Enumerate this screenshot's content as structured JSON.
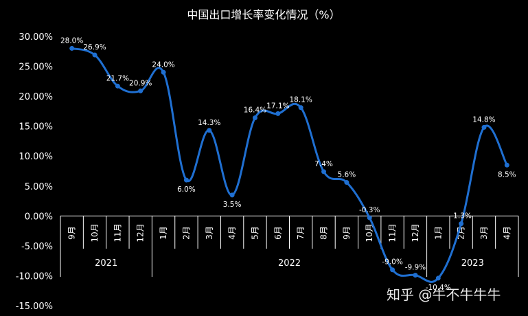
{
  "chart_data": {
    "type": "line",
    "title": "中国出口增长率变化情况（%）",
    "categories": [
      "9月",
      "10月",
      "11月",
      "12月",
      "1月",
      "2月",
      "3月",
      "4月",
      "5月",
      "6月",
      "7月",
      "8月",
      "9月",
      "10月",
      "11月",
      "12月",
      "1月",
      "2月",
      "3月",
      "4月"
    ],
    "category_groups": [
      {
        "label": "2021",
        "count": 4
      },
      {
        "label": "2022",
        "count": 12
      },
      {
        "label": "2023",
        "count": 4
      }
    ],
    "values": [
      28.0,
      26.9,
      21.7,
      20.9,
      24.0,
      6.0,
      14.3,
      3.5,
      16.4,
      17.1,
      18.1,
      7.4,
      5.6,
      -0.3,
      -9.0,
      -9.9,
      -10.4,
      -1.3,
      14.8,
      8.5
    ],
    "data_labels": [
      "28.0%",
      "26.9%",
      "21.7%",
      "20.9%",
      "24.0%",
      "6.0%",
      "14.3%",
      "3.5%",
      "16.4%",
      "17.1%",
      "18.1%",
      "7.4%",
      "5.6%",
      "-0.3%",
      "-9.0%",
      "-9.9%",
      "-10.4%",
      "-1.3%",
      "14.8%",
      "8.5%"
    ],
    "yticks": [
      "30.00%",
      "25.00%",
      "20.00%",
      "15.00%",
      "10.00%",
      "5.00%",
      "0.00%",
      "-5.00%",
      "-10.00%",
      "-15.00%"
    ],
    "ylim": [
      -15,
      30
    ],
    "grid": false,
    "line_color": "#1f6fd1",
    "background": "#000000"
  },
  "watermark": "知乎 @牛不牛牛牛"
}
